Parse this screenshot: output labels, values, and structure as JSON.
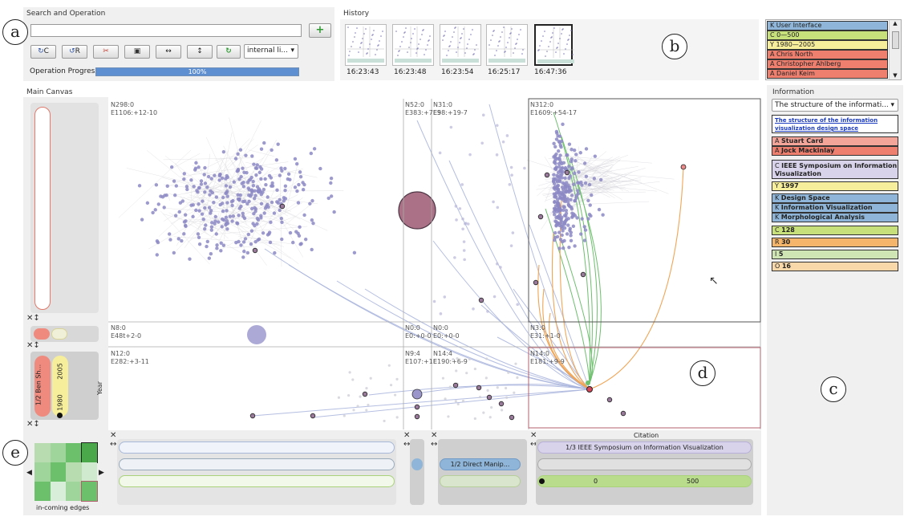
{
  "search_panel": {
    "title": "Search and Operation",
    "search_value": "",
    "add_icon": "plus-icon",
    "buttons": [
      "C",
      "R",
      "",
      "",
      "",
      "",
      ""
    ],
    "dropdown_value": "internal li...",
    "progress_label": "Operation Progress",
    "progress_text": "100%",
    "progress_fraction": 1.0
  },
  "history": {
    "title": "History",
    "times": [
      "16:23:43",
      "16:23:48",
      "16:23:54",
      "16:25:17",
      "16:47:36"
    ]
  },
  "filter_list": [
    {
      "prefix": "K",
      "label": "User Interface",
      "color": "#8fb6d8"
    },
    {
      "prefix": "C",
      "label": "0—500",
      "color": "#c8e07c"
    },
    {
      "prefix": "Y",
      "label": "1980—2005",
      "color": "#f6ee9a"
    },
    {
      "prefix": "A",
      "label": "Chris North",
      "color": "#ee7f6f"
    },
    {
      "prefix": "A",
      "label": "Christopher Ahlberg",
      "color": "#ee7f6f"
    },
    {
      "prefix": "A",
      "label": "Daniel Keim",
      "color": "#ee7f6f"
    }
  ],
  "information": {
    "title": "Information",
    "dropdown_value": "The structure of the informati...",
    "link_title": "The structure of the information visualization design space",
    "authors": [
      "Stuart Card",
      "Jock Mackinlay"
    ],
    "conference": "IEEE Symposium on Information Visualization",
    "year": "1997",
    "keywords": [
      "Design Space",
      "Information Visualization",
      "Morphological Analysis"
    ],
    "stats": [
      {
        "prefix": "C",
        "value": "128"
      },
      {
        "prefix": "R",
        "value": "30"
      },
      {
        "prefix": "I",
        "value": "5"
      },
      {
        "prefix": "O",
        "value": "16"
      }
    ]
  },
  "canvas": {
    "title": "Main Canvas",
    "y_axis_label": "Year",
    "cells": [
      {
        "n": "N298:0",
        "e": "E1106:+12-10"
      },
      {
        "n": "N52:0",
        "e": "E383:+7E5"
      },
      {
        "n": "N31:0",
        "e": "E98:+19-7"
      },
      {
        "n": "N312:0",
        "e": "E1609:+54-17"
      },
      {
        "n": "N8:0",
        "e": "E48t+2-0"
      },
      {
        "n": "N0:0",
        "e": "E0:+0-0"
      },
      {
        "n": "N0:0",
        "e": "E0:+0-0"
      },
      {
        "n": "N3:0",
        "e": "E31:+1-0"
      },
      {
        "n": "N12:0",
        "e": "E282:+3-11"
      },
      {
        "n": "N9:4",
        "e": "E107:+1E"
      },
      {
        "n": "N14:4",
        "e": "E190:+6-9"
      },
      {
        "n": "N14:0",
        "e": "E181:+9-9"
      }
    ],
    "year_range": {
      "label": "1/2 Ben Sh...",
      "start": "1980",
      "end": "2005"
    },
    "shelf_labels": {
      "direct": "1/2 Direct Manip...",
      "citation_title": "Citation",
      "citation_pill": "1/3 IEEE Symposium on Information Visualization",
      "range_start": "0",
      "range_end": "500"
    },
    "matrix_label": "in-coming edges"
  },
  "markers": [
    "a",
    "b",
    "c",
    "d",
    "e"
  ]
}
